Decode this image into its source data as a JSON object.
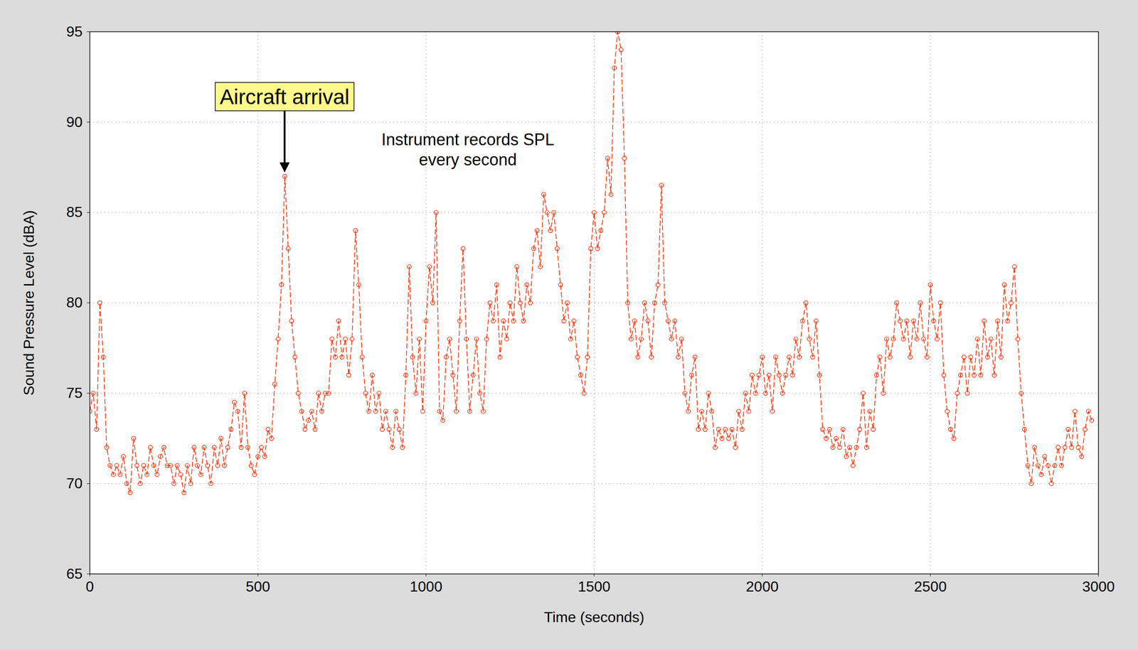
{
  "chart_data": {
    "type": "line",
    "x_label": "Time (seconds)",
    "y_label": "Sound Pressure Level (dBA)",
    "xlim": [
      0,
      3000
    ],
    "xticks": [
      0,
      500,
      1000,
      1500,
      2000,
      2500,
      3000
    ],
    "ylim": [
      65,
      95
    ],
    "yticks": [
      65,
      70,
      75,
      80,
      85,
      90,
      95
    ],
    "grid": true,
    "color": "#ff2a00",
    "marker": "circle",
    "line_style": "dashed",
    "annotations": [
      {
        "text": "Aircraft arrival",
        "x": 580
      },
      {
        "text": "Instrument records SPL every second"
      }
    ],
    "x": [
      0,
      10,
      20,
      30,
      40,
      50,
      60,
      70,
      80,
      90,
      100,
      110,
      120,
      130,
      140,
      150,
      160,
      170,
      180,
      190,
      200,
      210,
      220,
      230,
      240,
      250,
      260,
      270,
      280,
      290,
      300,
      310,
      320,
      330,
      340,
      350,
      360,
      370,
      380,
      390,
      400,
      410,
      420,
      430,
      440,
      450,
      460,
      470,
      480,
      490,
      500,
      510,
      520,
      530,
      540,
      550,
      560,
      570,
      580,
      590,
      600,
      610,
      620,
      630,
      640,
      650,
      660,
      670,
      680,
      690,
      700,
      710,
      720,
      730,
      740,
      750,
      760,
      770,
      780,
      790,
      800,
      810,
      820,
      830,
      840,
      850,
      860,
      870,
      880,
      890,
      900,
      910,
      920,
      930,
      940,
      950,
      960,
      970,
      980,
      990,
      1000,
      1010,
      1020,
      1030,
      1040,
      1050,
      1060,
      1070,
      1080,
      1090,
      1100,
      1110,
      1120,
      1130,
      1140,
      1150,
      1160,
      1170,
      1180,
      1190,
      1200,
      1210,
      1220,
      1230,
      1240,
      1250,
      1260,
      1270,
      1280,
      1290,
      1300,
      1310,
      1320,
      1330,
      1340,
      1350,
      1360,
      1370,
      1380,
      1390,
      1400,
      1410,
      1420,
      1430,
      1440,
      1450,
      1460,
      1470,
      1480,
      1490,
      1500,
      1510,
      1520,
      1530,
      1540,
      1550,
      1560,
      1570,
      1580,
      1590,
      1600,
      1610,
      1620,
      1630,
      1640,
      1650,
      1660,
      1670,
      1680,
      1690,
      1700,
      1710,
      1720,
      1730,
      1740,
      1750,
      1760,
      1770,
      1780,
      1790,
      1800,
      1810,
      1820,
      1830,
      1840,
      1850,
      1860,
      1870,
      1880,
      1890,
      1900,
      1910,
      1920,
      1930,
      1940,
      1950,
      1960,
      1970,
      1980,
      1990,
      2000,
      2010,
      2020,
      2030,
      2040,
      2050,
      2060,
      2070,
      2080,
      2090,
      2100,
      2110,
      2120,
      2130,
      2140,
      2150,
      2160,
      2170,
      2180,
      2190,
      2200,
      2210,
      2220,
      2230,
      2240,
      2250,
      2260,
      2270,
      2280,
      2290,
      2300,
      2310,
      2320,
      2330,
      2340,
      2350,
      2360,
      2370,
      2380,
      2390,
      2400,
      2410,
      2420,
      2430,
      2440,
      2450,
      2460,
      2470,
      2480,
      2490,
      2500,
      2510,
      2520,
      2530,
      2540,
      2550,
      2560,
      2570,
      2580,
      2590,
      2600,
      2610,
      2620,
      2630,
      2640,
      2650,
      2660,
      2670,
      2680,
      2690,
      2700,
      2710,
      2720,
      2730,
      2740,
      2750,
      2760,
      2770,
      2780,
      2790,
      2800,
      2810,
      2820,
      2830,
      2840,
      2850,
      2860,
      2870,
      2880,
      2890,
      2900,
      2910,
      2920,
      2930,
      2940,
      2950,
      2960,
      2970,
      2980
    ],
    "values": [
      74,
      75,
      73,
      80,
      77,
      72,
      71,
      70.5,
      71,
      70.5,
      71.5,
      70,
      69.5,
      72.5,
      71,
      70,
      71,
      70.5,
      72,
      71,
      70.5,
      71.5,
      72,
      71,
      71,
      70,
      71,
      70.5,
      69.5,
      71,
      70,
      72,
      71,
      70.5,
      72,
      71,
      70,
      72,
      71,
      72.5,
      71,
      72,
      73,
      74.5,
      74,
      72,
      75,
      72,
      71,
      70.5,
      71.5,
      72,
      71.5,
      73,
      72.5,
      75.5,
      78,
      81,
      87,
      83,
      79,
      77,
      75,
      74,
      73,
      73.5,
      74,
      73,
      75,
      74,
      75,
      75,
      78,
      77,
      79,
      77,
      78,
      76,
      78,
      84,
      81,
      77,
      75,
      74,
      76,
      74,
      75,
      73,
      74,
      73,
      72,
      74,
      73,
      72,
      76,
      82,
      77,
      75,
      78,
      74,
      79,
      82,
      80,
      85,
      74,
      73.5,
      77,
      78,
      76,
      74,
      79,
      83,
      78,
      74,
      76,
      78,
      75,
      74,
      78,
      80,
      79,
      81,
      77,
      79,
      78,
      80,
      79,
      82,
      80,
      79,
      81,
      80,
      83,
      84,
      82,
      86,
      85,
      84,
      85,
      83,
      81,
      79,
      80,
      78,
      79,
      77,
      76,
      75,
      77,
      83,
      85,
      83,
      84,
      85,
      88,
      86,
      93,
      95,
      94,
      88,
      80,
      78,
      79,
      77,
      78,
      80,
      79,
      77,
      80,
      81,
      86.5,
      80,
      79,
      78,
      79,
      77,
      78,
      75,
      74,
      76,
      77,
      73,
      74,
      73,
      75,
      74,
      72,
      73,
      72.5,
      73,
      72.5,
      73,
      72,
      74,
      73,
      75,
      74,
      76,
      75,
      76,
      77,
      75,
      76,
      74,
      77,
      76,
      75,
      76,
      77,
      76,
      78,
      77,
      79,
      80,
      78,
      77,
      79,
      76,
      73,
      72.5,
      73,
      72,
      72.5,
      72,
      73,
      71.5,
      72,
      71,
      72,
      73,
      75,
      72,
      74,
      73,
      76,
      77,
      75,
      78,
      77,
      78,
      80,
      79,
      78,
      79,
      77,
      79,
      78,
      80,
      78,
      77,
      81,
      79,
      78,
      80,
      76,
      74,
      73,
      72.5,
      75,
      76,
      77,
      75,
      77,
      76,
      78,
      76,
      79,
      77,
      78,
      76,
      79,
      77,
      81,
      79,
      80,
      82,
      78,
      75,
      73,
      71,
      70,
      72,
      71,
      70.5,
      71.5,
      71,
      70,
      71,
      72,
      71,
      72,
      73,
      72,
      74,
      72,
      71.5,
      73,
      74,
      73.5
    ]
  }
}
